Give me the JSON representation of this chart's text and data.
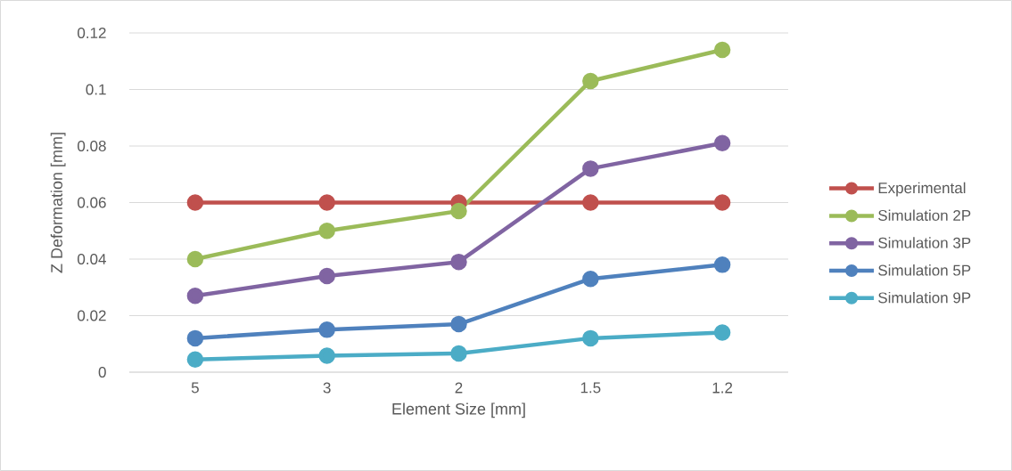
{
  "chart_data": {
    "type": "line",
    "xlabel": "Element Size [mm]",
    "ylabel": "Z Deformation [mm]",
    "categories": [
      "5",
      "3",
      "2",
      "1.5",
      "1.2"
    ],
    "series": [
      {
        "name": "Experimental",
        "color": "#c0504d",
        "values": [
          0.06,
          0.06,
          0.06,
          0.06,
          0.06
        ]
      },
      {
        "name": "Simulation 2P",
        "color": "#9bbb59",
        "values": [
          0.04,
          0.05,
          0.057,
          0.103,
          0.114
        ]
      },
      {
        "name": "Simulation 3P",
        "color": "#8064a2",
        "values": [
          0.027,
          0.034,
          0.039,
          0.072,
          0.081
        ]
      },
      {
        "name": "Simulation 5P",
        "color": "#4f81bd",
        "values": [
          0.012,
          0.015,
          0.017,
          0.033,
          0.038
        ]
      },
      {
        "name": "Simulation 9P",
        "color": "#4bacc6",
        "values": [
          0.0045,
          0.0058,
          0.0066,
          0.012,
          0.014
        ]
      }
    ],
    "ylim": [
      0,
      0.12
    ],
    "yticks": [
      0,
      0.02,
      0.04,
      0.06,
      0.08,
      0.1,
      0.12
    ],
    "grid": "y",
    "legend": "right",
    "marker": "circle",
    "line_style": "solid"
  }
}
